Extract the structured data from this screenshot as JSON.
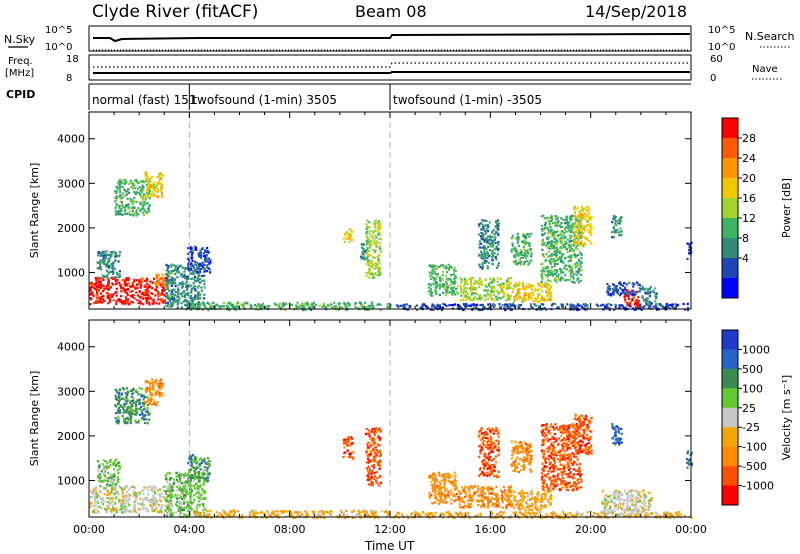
{
  "header": {
    "station": "Clyde River (fitACF)",
    "beam": "Beam 08",
    "date": "14/Sep/2018"
  },
  "panels": {
    "nsky_label": "N.Sky",
    "nsky_ticks": [
      "10^5",
      "10^0"
    ],
    "nsearch_label": "N.Search",
    "nsearch_ticks": [
      "10^5",
      "10^0"
    ],
    "freq_label_1": "Freq.",
    "freq_label_2": "[MHz]",
    "freq_ticks": [
      "18",
      "8"
    ],
    "nave_label": "Nave",
    "nave_ticks": [
      "60",
      "0"
    ],
    "cpid_label": "CPID",
    "cpid_segments": [
      {
        "label": "normal (fast)  151",
        "start": 0.0,
        "end": 4.0
      },
      {
        "label": "twofsound (1-min) 3505",
        "start": 4.0,
        "end": 12.0
      },
      {
        "label": "twofsound (1-min) -3505",
        "start": 12.0,
        "end": 24.0
      }
    ]
  },
  "power_colorbar": {
    "label": "Power [dB]",
    "ticks": [
      "28",
      "24",
      "20",
      "16",
      "12",
      "8",
      "4"
    ],
    "colors": [
      "#ff0000",
      "#ff5a00",
      "#ff9600",
      "#f0c800",
      "#a0d232",
      "#3cb464",
      "#328c78",
      "#1e46b4",
      "#0000ff"
    ]
  },
  "velocity_colorbar": {
    "label": "Velocity [m s⁻¹]",
    "ticks": [
      "1000",
      "500",
      "100",
      "25",
      "-25",
      "-100",
      "-500",
      "-1000"
    ],
    "colors": [
      "#1e3cc8",
      "#2864c8",
      "#3c8c50",
      "#64c832",
      "#c8c8c8",
      "#f5a500",
      "#ff8c00",
      "#ff5000",
      "#ff0000"
    ]
  },
  "chart_data": [
    {
      "type": "heatmap",
      "name": "power",
      "ylabel": "Slant Range [km]",
      "yticks": [
        1000,
        2000,
        3000,
        4000
      ],
      "ylim": [
        180,
        4600
      ],
      "xlim": [
        0,
        24
      ],
      "vlines": [
        4,
        12
      ],
      "patches": [
        {
          "t0": 0.0,
          "t1": 3.0,
          "r0": 300,
          "r1": 900,
          "c": 0
        },
        {
          "t0": 2.6,
          "t1": 3.2,
          "r0": 700,
          "r1": 1000,
          "c": 2
        },
        {
          "t0": 0.3,
          "t1": 1.2,
          "r0": 900,
          "r1": 1500,
          "c": 6
        },
        {
          "t0": 1.0,
          "t1": 2.4,
          "r0": 2300,
          "r1": 3100,
          "c": 5
        },
        {
          "t0": 2.2,
          "t1": 2.9,
          "r0": 2700,
          "r1": 3300,
          "c": 3
        },
        {
          "t0": 3.0,
          "t1": 4.6,
          "r0": 200,
          "r1": 1200,
          "c": 6
        },
        {
          "t0": 3.9,
          "t1": 4.8,
          "r0": 1000,
          "r1": 1600,
          "c": 7
        },
        {
          "t0": 4.0,
          "t1": 12.0,
          "r0": 180,
          "r1": 350,
          "c": 5
        },
        {
          "t0": 10.1,
          "t1": 10.5,
          "r0": 1700,
          "r1": 2000,
          "c": 3
        },
        {
          "t0": 10.8,
          "t1": 11.1,
          "r0": 1300,
          "r1": 1700,
          "c": 6
        },
        {
          "t0": 11.0,
          "t1": 11.6,
          "r0": 900,
          "r1": 2200,
          "c": 4
        },
        {
          "t0": 12.0,
          "t1": 24.0,
          "r0": 180,
          "r1": 320,
          "c": 7
        },
        {
          "t0": 13.5,
          "t1": 14.6,
          "r0": 500,
          "r1": 1200,
          "c": 5
        },
        {
          "t0": 14.6,
          "t1": 16.8,
          "r0": 400,
          "r1": 900,
          "c": 4
        },
        {
          "t0": 16.8,
          "t1": 18.4,
          "r0": 350,
          "r1": 800,
          "c": 3
        },
        {
          "t0": 15.5,
          "t1": 16.3,
          "r0": 1100,
          "r1": 2200,
          "c": 6
        },
        {
          "t0": 16.8,
          "t1": 17.6,
          "r0": 1200,
          "r1": 1900,
          "c": 5
        },
        {
          "t0": 18.0,
          "t1": 19.6,
          "r0": 800,
          "r1": 2300,
          "c": 5
        },
        {
          "t0": 19.3,
          "t1": 20.0,
          "r0": 1600,
          "r1": 2500,
          "c": 3
        },
        {
          "t0": 20.8,
          "t1": 21.2,
          "r0": 1800,
          "r1": 2300,
          "c": 6
        },
        {
          "t0": 21.3,
          "t1": 21.9,
          "r0": 250,
          "r1": 650,
          "c": 0
        },
        {
          "t0": 20.6,
          "t1": 22.0,
          "r0": 500,
          "r1": 800,
          "c": 7
        },
        {
          "t0": 22.0,
          "t1": 22.6,
          "r0": 300,
          "r1": 700,
          "c": 6
        },
        {
          "t0": 23.8,
          "t1": 24.0,
          "r0": 1300,
          "r1": 1700,
          "c": 7
        }
      ]
    },
    {
      "type": "heatmap",
      "name": "velocity",
      "ylabel": "Slant Range [km]",
      "yticks": [
        1000,
        2000,
        3000,
        4000
      ],
      "ylim": [
        180,
        4600
      ],
      "xlim": [
        0,
        24
      ],
      "xticks": [
        "00:00",
        "04:00",
        "08:00",
        "12:00",
        "16:00",
        "20:00",
        "00:00"
      ],
      "xlabel": "Time UT",
      "vlines": [
        4,
        12
      ],
      "patches": [
        {
          "t0": 0.0,
          "t1": 3.2,
          "r0": 300,
          "r1": 900,
          "c": 4
        },
        {
          "t0": 0.3,
          "t1": 1.2,
          "r0": 900,
          "r1": 1500,
          "c": 3
        },
        {
          "t0": 1.0,
          "t1": 2.4,
          "r0": 2300,
          "r1": 3100,
          "c": 2
        },
        {
          "t0": 2.2,
          "t1": 2.9,
          "r0": 2700,
          "r1": 3300,
          "c": 6
        },
        {
          "t0": 3.0,
          "t1": 4.6,
          "r0": 200,
          "r1": 1200,
          "c": 3
        },
        {
          "t0": 3.9,
          "t1": 4.8,
          "r0": 1000,
          "r1": 1600,
          "c": 2
        },
        {
          "t0": 4.0,
          "t1": 12.0,
          "r0": 180,
          "r1": 350,
          "c": 5
        },
        {
          "t0": 10.1,
          "t1": 10.5,
          "r0": 1500,
          "r1": 2000,
          "c": 7
        },
        {
          "t0": 11.0,
          "t1": 11.6,
          "r0": 900,
          "r1": 2200,
          "c": 7
        },
        {
          "t0": 12.0,
          "t1": 24.0,
          "r0": 180,
          "r1": 320,
          "c": 5
        },
        {
          "t0": 13.5,
          "t1": 14.6,
          "r0": 500,
          "r1": 1200,
          "c": 6
        },
        {
          "t0": 14.6,
          "t1": 16.8,
          "r0": 400,
          "r1": 900,
          "c": 6
        },
        {
          "t0": 16.8,
          "t1": 18.4,
          "r0": 350,
          "r1": 800,
          "c": 5
        },
        {
          "t0": 15.5,
          "t1": 16.3,
          "r0": 1100,
          "r1": 2200,
          "c": 7
        },
        {
          "t0": 16.8,
          "t1": 17.6,
          "r0": 1200,
          "r1": 1900,
          "c": 6
        },
        {
          "t0": 18.0,
          "t1": 19.6,
          "r0": 800,
          "r1": 2300,
          "c": 7
        },
        {
          "t0": 19.3,
          "t1": 20.0,
          "r0": 1600,
          "r1": 2500,
          "c": 7
        },
        {
          "t0": 20.8,
          "t1": 21.2,
          "r0": 1800,
          "r1": 2300,
          "c": 1
        },
        {
          "t0": 20.4,
          "t1": 22.4,
          "r0": 250,
          "r1": 800,
          "c": 4
        },
        {
          "t0": 23.8,
          "t1": 24.0,
          "r0": 1300,
          "r1": 1700,
          "c": 1
        }
      ]
    }
  ]
}
